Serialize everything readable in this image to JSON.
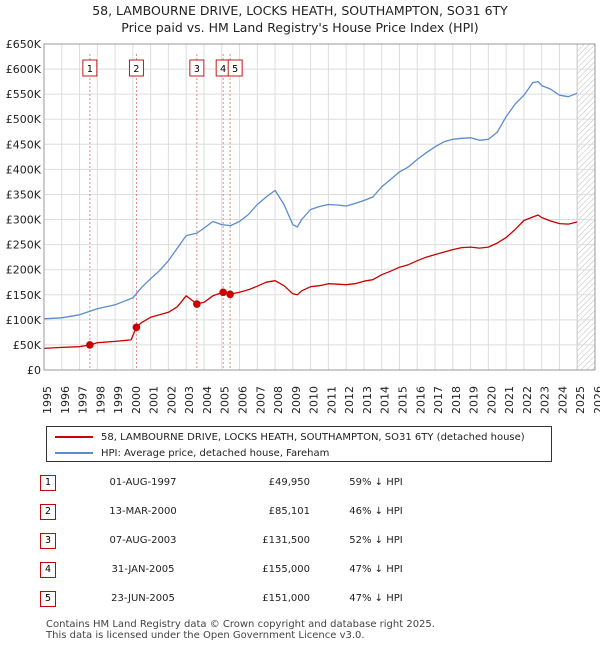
{
  "header": {
    "line1": "58, LAMBOURNE DRIVE, LOCKS HEATH, SOUTHAMPTON, SO31 6TY",
    "line2": "Price paid vs. HM Land Registry's House Price Index (HPI)"
  },
  "chart_data": {
    "type": "line",
    "title": "58, LAMBOURNE DRIVE, LOCKS HEATH, SOUTHAMPTON, SO31 6TY",
    "subtitle": "Price paid vs. HM Land Registry's House Price Index (HPI)",
    "xlim": [
      1995,
      2026
    ],
    "ylim": [
      0,
      650000
    ],
    "x_ticks": [
      "1995",
      "1996",
      "1997",
      "1998",
      "1999",
      "2000",
      "2001",
      "2002",
      "2003",
      "2004",
      "2005",
      "2006",
      "2007",
      "2008",
      "2009",
      "2010",
      "2011",
      "2012",
      "2013",
      "2014",
      "2015",
      "2016",
      "2017",
      "2018",
      "2019",
      "2020",
      "2021",
      "2022",
      "2023",
      "2024",
      "2025",
      "2026"
    ],
    "y_ticks": [
      {
        "value": 0,
        "label": "£0"
      },
      {
        "value": 50000,
        "label": "£50K"
      },
      {
        "value": 100000,
        "label": "£100K"
      },
      {
        "value": 150000,
        "label": "£150K"
      },
      {
        "value": 200000,
        "label": "£200K"
      },
      {
        "value": 250000,
        "label": "£250K"
      },
      {
        "value": 300000,
        "label": "£300K"
      },
      {
        "value": 350000,
        "label": "£350K"
      },
      {
        "value": 400000,
        "label": "£400K"
      },
      {
        "value": 450000,
        "label": "£450K"
      },
      {
        "value": 500000,
        "label": "£500K"
      },
      {
        "value": 550000,
        "label": "£550K"
      },
      {
        "value": 600000,
        "label": "£600K"
      },
      {
        "value": 650000,
        "label": "£650K"
      }
    ],
    "series": [
      {
        "name": "58, LAMBOURNE DRIVE, LOCKS HEATH, SOUTHAMPTON, SO31 6TY (detached house)",
        "color": "#cc0000",
        "x": [
          1995.0,
          1996.0,
          1997.0,
          1997.58,
          1998.0,
          1999.0,
          1999.9,
          2000.2,
          2000.5,
          2001.0,
          2001.5,
          2002.0,
          2002.5,
          2003.0,
          2003.6,
          2004.0,
          2004.5,
          2005.08,
          2005.47,
          2006.0,
          2006.5,
          2007.0,
          2007.5,
          2008.0,
          2008.5,
          2009.0,
          2009.25,
          2009.5,
          2010.0,
          2010.5,
          2011.0,
          2011.5,
          2012.0,
          2012.5,
          2013.0,
          2013.5,
          2014.0,
          2014.5,
          2015.0,
          2015.5,
          2016.0,
          2016.5,
          2017.0,
          2017.5,
          2018.0,
          2018.5,
          2019.0,
          2019.5,
          2020.0,
          2020.5,
          2021.0,
          2021.5,
          2022.0,
          2022.5,
          2022.8,
          2023.0,
          2023.5,
          2024.0,
          2024.5,
          2025.0
        ],
        "y": [
          43000,
          45000,
          46500,
          49950,
          54500,
          57000,
          60000,
          85101,
          95000,
          105000,
          110000,
          115000,
          126000,
          148000,
          131500,
          135000,
          148000,
          155000,
          151000,
          155000,
          160000,
          167000,
          175000,
          178000,
          168000,
          152000,
          150000,
          158000,
          166000,
          168000,
          172000,
          171000,
          170000,
          172000,
          177000,
          180000,
          190000,
          197000,
          205000,
          210000,
          218000,
          225000,
          230000,
          235000,
          240000,
          244000,
          245000,
          243000,
          245000,
          253000,
          264000,
          280000,
          298000,
          305000,
          309000,
          304000,
          297000,
          292000,
          291000,
          295000
        ]
      },
      {
        "name": "HPI: Average price, detached house, Fareham",
        "color": "#5b8bd0",
        "x": [
          1995.0,
          1996.0,
          1997.0,
          1998.0,
          1999.0,
          2000.0,
          2000.5,
          2001.0,
          2001.5,
          2002.0,
          2002.5,
          2003.0,
          2003.6,
          2004.0,
          2004.5,
          2005.0,
          2005.5,
          2006.0,
          2006.5,
          2007.0,
          2007.5,
          2008.0,
          2008.5,
          2009.0,
          2009.25,
          2009.5,
          2010.0,
          2010.5,
          2011.0,
          2011.5,
          2012.0,
          2012.5,
          2013.0,
          2013.5,
          2014.0,
          2014.5,
          2015.0,
          2015.5,
          2016.0,
          2016.5,
          2017.0,
          2017.5,
          2018.0,
          2018.5,
          2019.0,
          2019.5,
          2020.0,
          2020.5,
          2021.0,
          2021.5,
          2022.0,
          2022.5,
          2022.8,
          2023.0,
          2023.5,
          2024.0,
          2024.5,
          2025.0
        ],
        "y": [
          102000,
          104000,
          110000,
          122000,
          130000,
          144000,
          165000,
          182000,
          198000,
          218000,
          243000,
          268000,
          273000,
          283000,
          296000,
          290000,
          288000,
          296000,
          310000,
          330000,
          345000,
          358000,
          330000,
          290000,
          285000,
          300000,
          320000,
          326000,
          330000,
          329000,
          327000,
          332000,
          338000,
          345000,
          365000,
          380000,
          395000,
          405000,
          420000,
          433000,
          445000,
          455000,
          460000,
          462000,
          463000,
          458000,
          460000,
          474000,
          505000,
          530000,
          548000,
          573000,
          575000,
          567000,
          560000,
          548000,
          545000,
          552000
        ]
      }
    ],
    "sales": [
      {
        "id": "1",
        "x": 1997.58,
        "y": 49950
      },
      {
        "id": "2",
        "x": 2000.2,
        "y": 85101
      },
      {
        "id": "3",
        "x": 2003.6,
        "y": 131500
      },
      {
        "id": "4",
        "x": 2005.08,
        "y": 155000
      },
      {
        "id": "5",
        "x": 2005.47,
        "y": 151000
      }
    ],
    "projection_start": 2025.0
  },
  "legend": {
    "items": [
      {
        "label": "58, LAMBOURNE DRIVE, LOCKS HEATH, SOUTHAMPTON, SO31 6TY (detached house)",
        "color": "#cc0000"
      },
      {
        "label": "HPI: Average price, detached house, Fareham",
        "color": "#5b8bd0"
      }
    ]
  },
  "table": {
    "rows": [
      {
        "num": "1",
        "date": "01-AUG-1997",
        "price": "£49,950",
        "pct": "59% ↓ HPI"
      },
      {
        "num": "2",
        "date": "13-MAR-2000",
        "price": "£85,101",
        "pct": "46% ↓ HPI"
      },
      {
        "num": "3",
        "date": "07-AUG-2003",
        "price": "£131,500",
        "pct": "52% ↓ HPI"
      },
      {
        "num": "4",
        "date": "31-JAN-2005",
        "price": "£155,000",
        "pct": "47% ↓ HPI"
      },
      {
        "num": "5",
        "date": "23-JUN-2005",
        "price": "£151,000",
        "pct": "47% ↓ HPI"
      }
    ]
  },
  "footer": {
    "line1": "Contains HM Land Registry data © Crown copyright and database right 2025.",
    "line2": "This data is licensed under the Open Government Licence v3.0."
  }
}
